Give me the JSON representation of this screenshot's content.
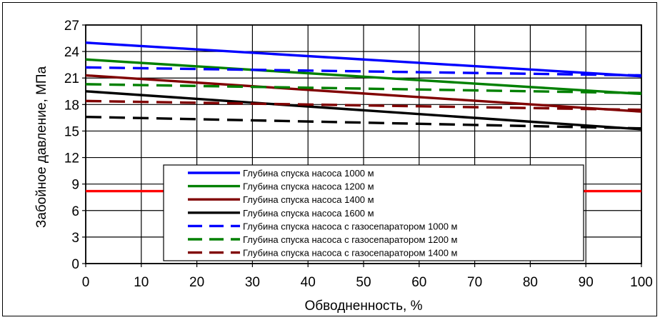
{
  "chart_data": {
    "type": "line",
    "xlabel": "Обводненность, %",
    "ylabel": "Забойное давление, МПа",
    "xlim": [
      0,
      100
    ],
    "ylim": [
      0,
      27
    ],
    "x_ticks": [
      "0",
      "10",
      "20",
      "30",
      "40",
      "50",
      "60",
      "70",
      "80",
      "90",
      "100"
    ],
    "y_ticks": [
      "0",
      "3",
      "6",
      "9",
      "12",
      "15",
      "18",
      "21",
      "24",
      "27"
    ],
    "grid": true,
    "legend_position": "bottom-center",
    "series": [
      {
        "name": "Глубина спуска насоса 1000 м",
        "color": "#0000ff",
        "dash": "solid",
        "x": [
          0,
          100
        ],
        "y": [
          25.0,
          21.2
        ]
      },
      {
        "name": "Глубина спуска насоса 1200 м",
        "color": "#008000",
        "dash": "solid",
        "x": [
          0,
          100
        ],
        "y": [
          23.1,
          19.2
        ]
      },
      {
        "name": "Глубина спуска насоса 1400 м",
        "color": "#800000",
        "dash": "solid",
        "x": [
          0,
          100
        ],
        "y": [
          21.3,
          17.2
        ]
      },
      {
        "name": "Глубина спуска насоса 1600 м",
        "color": "#000000",
        "dash": "solid",
        "x": [
          0,
          100
        ],
        "y": [
          19.5,
          15.2
        ]
      },
      {
        "name": "Глубина спуска насоса с газосепаратором  1000 м",
        "color": "#0000ff",
        "dash": "dashed",
        "x": [
          0,
          100
        ],
        "y": [
          22.2,
          21.3
        ]
      },
      {
        "name": "Глубина спуска насоса с газосепаратором  1200 м",
        "color": "#008000",
        "dash": "dashed",
        "x": [
          0,
          100
        ],
        "y": [
          20.3,
          19.3
        ]
      },
      {
        "name": "Глубина спуска насоса с газосепаратором  1400 м",
        "color": "#800000",
        "dash": "dashed",
        "x": [
          0,
          100
        ],
        "y": [
          18.4,
          17.4
        ]
      },
      {
        "color": "#000000",
        "dash": "dashed",
        "x": [
          0,
          100
        ],
        "y": [
          16.6,
          15.3
        ]
      },
      {
        "color": "#ff0000",
        "dash": "solid",
        "x": [
          0,
          100
        ],
        "y": [
          8.2,
          8.2
        ]
      }
    ]
  }
}
